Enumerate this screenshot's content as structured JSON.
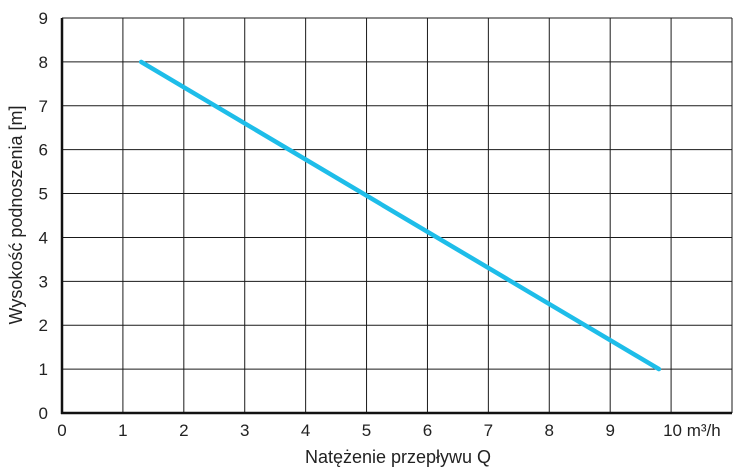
{
  "chart_data": {
    "type": "line",
    "xlabel": "Natężenie przepływu Q",
    "ylabel": "Wysokość podnoszenia [m]",
    "x_ticks": [
      "0",
      "1",
      "2",
      "3",
      "4",
      "5",
      "6",
      "7",
      "8",
      "9"
    ],
    "x_unit_tick": "10 m³/h",
    "y_ticks": [
      "0",
      "1",
      "2",
      "3",
      "4",
      "5",
      "6",
      "7",
      "8",
      "9"
    ],
    "xlim": [
      0,
      11
    ],
    "ylim": [
      0,
      9
    ],
    "grid": true,
    "series": [
      {
        "x": [
          1.3,
          9.8
        ],
        "y": [
          8,
          1
        ],
        "color": "#1ebde9"
      }
    ]
  }
}
